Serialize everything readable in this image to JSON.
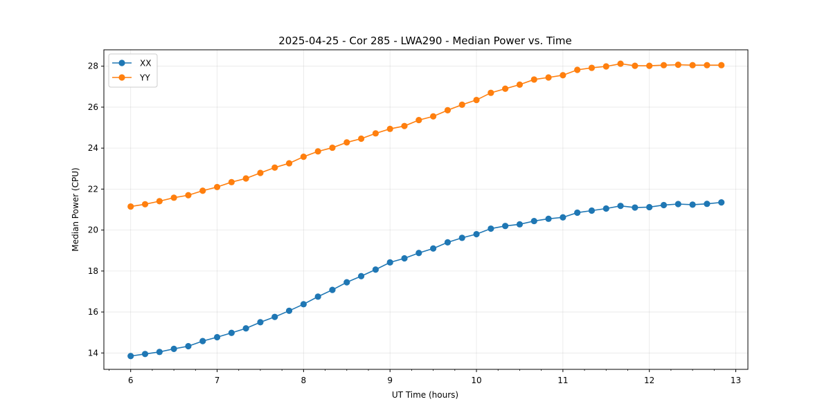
{
  "chart_data": {
    "type": "line",
    "title": "2025-04-25 - Cor 285 - LWA290 - Median Power vs. Time",
    "xlabel": "UT Time (hours)",
    "ylabel": "Median Power (CPU)",
    "xlim": [
      5.69,
      13.14
    ],
    "ylim": [
      13.2,
      28.8
    ],
    "xticks": [
      6,
      7,
      8,
      9,
      10,
      11,
      12,
      13
    ],
    "xtick_labels": [
      "6",
      "7",
      "8",
      "9",
      "10",
      "11",
      "12",
      "13"
    ],
    "yticks": [
      14,
      16,
      18,
      20,
      22,
      24,
      26,
      28
    ],
    "ytick_labels": [
      "14",
      "16",
      "18",
      "20",
      "22",
      "24",
      "26",
      "28"
    ],
    "grid": true,
    "legend_position": "upper-left",
    "x": [
      6.0,
      6.1667,
      6.3333,
      6.5,
      6.6667,
      6.8333,
      7.0,
      7.1667,
      7.3333,
      7.5,
      7.6667,
      7.8333,
      8.0,
      8.1667,
      8.3333,
      8.5,
      8.6667,
      8.8333,
      9.0,
      9.1667,
      9.3333,
      9.5,
      9.6667,
      9.8333,
      10.0,
      10.1667,
      10.3333,
      10.5,
      10.6667,
      10.8333,
      11.0,
      11.1667,
      11.3333,
      11.5,
      11.6667,
      11.8333,
      12.0,
      12.1667,
      12.3333,
      12.5,
      12.6667,
      12.8333
    ],
    "series": [
      {
        "name": "XX",
        "color": "#1f77b4",
        "values": [
          13.85,
          13.95,
          14.05,
          14.2,
          14.33,
          14.58,
          14.77,
          14.98,
          15.2,
          15.5,
          15.76,
          16.06,
          16.38,
          16.75,
          17.08,
          17.45,
          17.75,
          18.07,
          18.42,
          18.62,
          18.88,
          19.1,
          19.4,
          19.62,
          19.8,
          20.07,
          20.2,
          20.28,
          20.44,
          20.55,
          20.62,
          20.85,
          20.95,
          21.05,
          21.18,
          21.1,
          21.12,
          21.22,
          21.27,
          21.24,
          21.28,
          21.35
        ]
      },
      {
        "name": "YY",
        "color": "#ff7f0e",
        "values": [
          21.15,
          21.26,
          21.41,
          21.58,
          21.7,
          21.92,
          22.1,
          22.34,
          22.52,
          22.79,
          23.05,
          23.26,
          23.58,
          23.84,
          24.02,
          24.28,
          24.46,
          24.72,
          24.94,
          25.08,
          25.37,
          25.55,
          25.85,
          26.12,
          26.35,
          26.7,
          26.9,
          27.1,
          27.35,
          27.45,
          27.56,
          27.82,
          27.92,
          27.99,
          28.12,
          28.02,
          28.02,
          28.05,
          28.07,
          28.05,
          28.05,
          28.05
        ]
      }
    ]
  }
}
